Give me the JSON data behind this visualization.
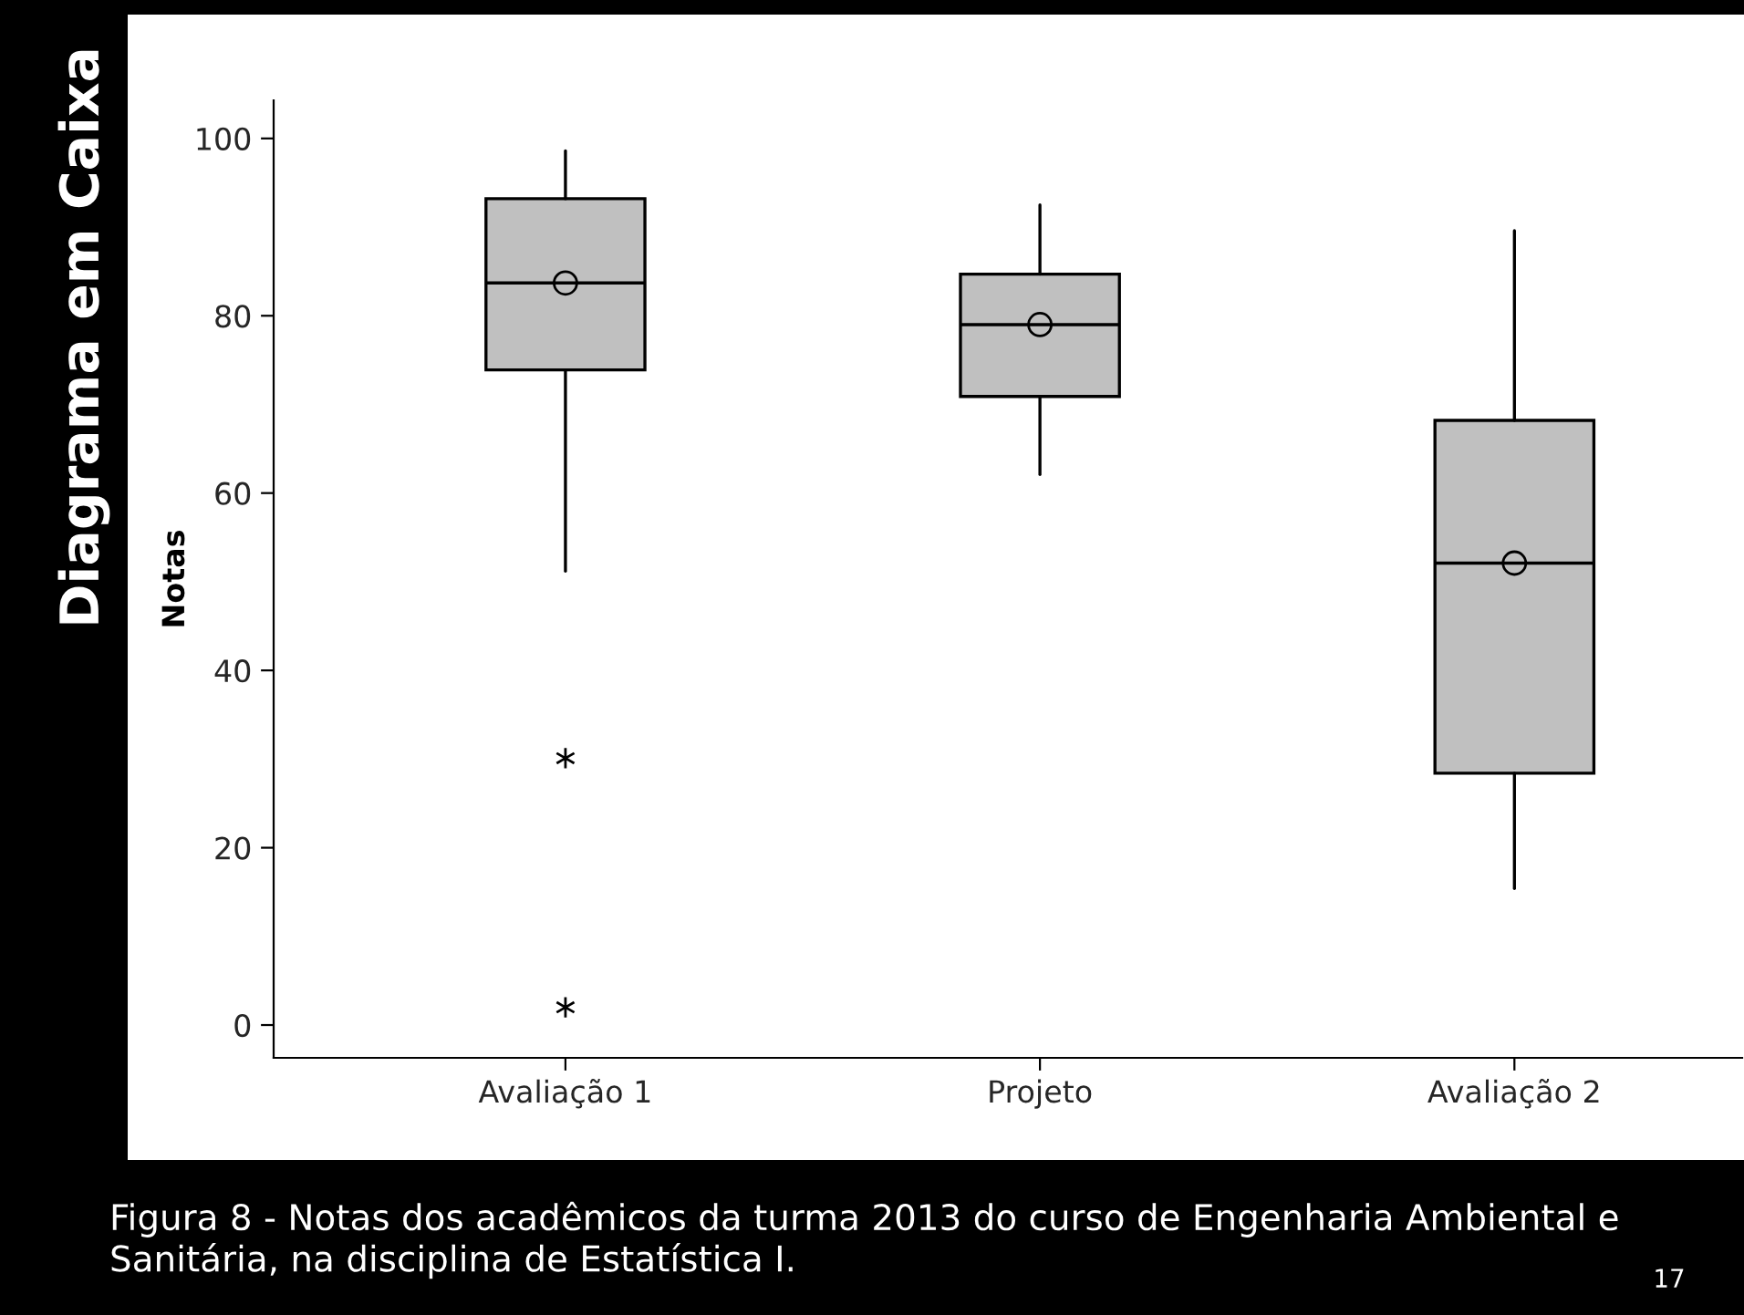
{
  "chart_data": {
    "type": "box",
    "title": "Diagrama em Caixa",
    "ylabel": "Notas",
    "categories": [
      "Avaliação 1",
      "Projeto",
      "Avaliação 2"
    ],
    "boxes": [
      {
        "low": 51.2,
        "q1": 73.9,
        "median": 83.7,
        "q3": 93.2,
        "high": 98.6,
        "mean": 83.7,
        "outliers": [
          30.1,
          2.0
        ]
      },
      {
        "low": 62.1,
        "q1": 70.9,
        "median": 79.0,
        "q3": 84.7,
        "high": 92.5,
        "mean": 79.0
      },
      {
        "low": 15.4,
        "q1": 28.4,
        "median": 52.1,
        "q3": 68.2,
        "high": 89.6,
        "mean": 52.1
      }
    ],
    "color": "#c0c0c0",
    "ylim": [
      -3.7,
      104.3
    ],
    "yticks": [
      0,
      20,
      40,
      60,
      80,
      100
    ],
    "grid": false,
    "legend": false,
    "annotations": [
      "Figura 8 - Notas dos acadêmicos da turma 2013 do curso de Engenharia Ambiental e Sanitária, na disciplina de Estatística I.",
      "17"
    ]
  }
}
